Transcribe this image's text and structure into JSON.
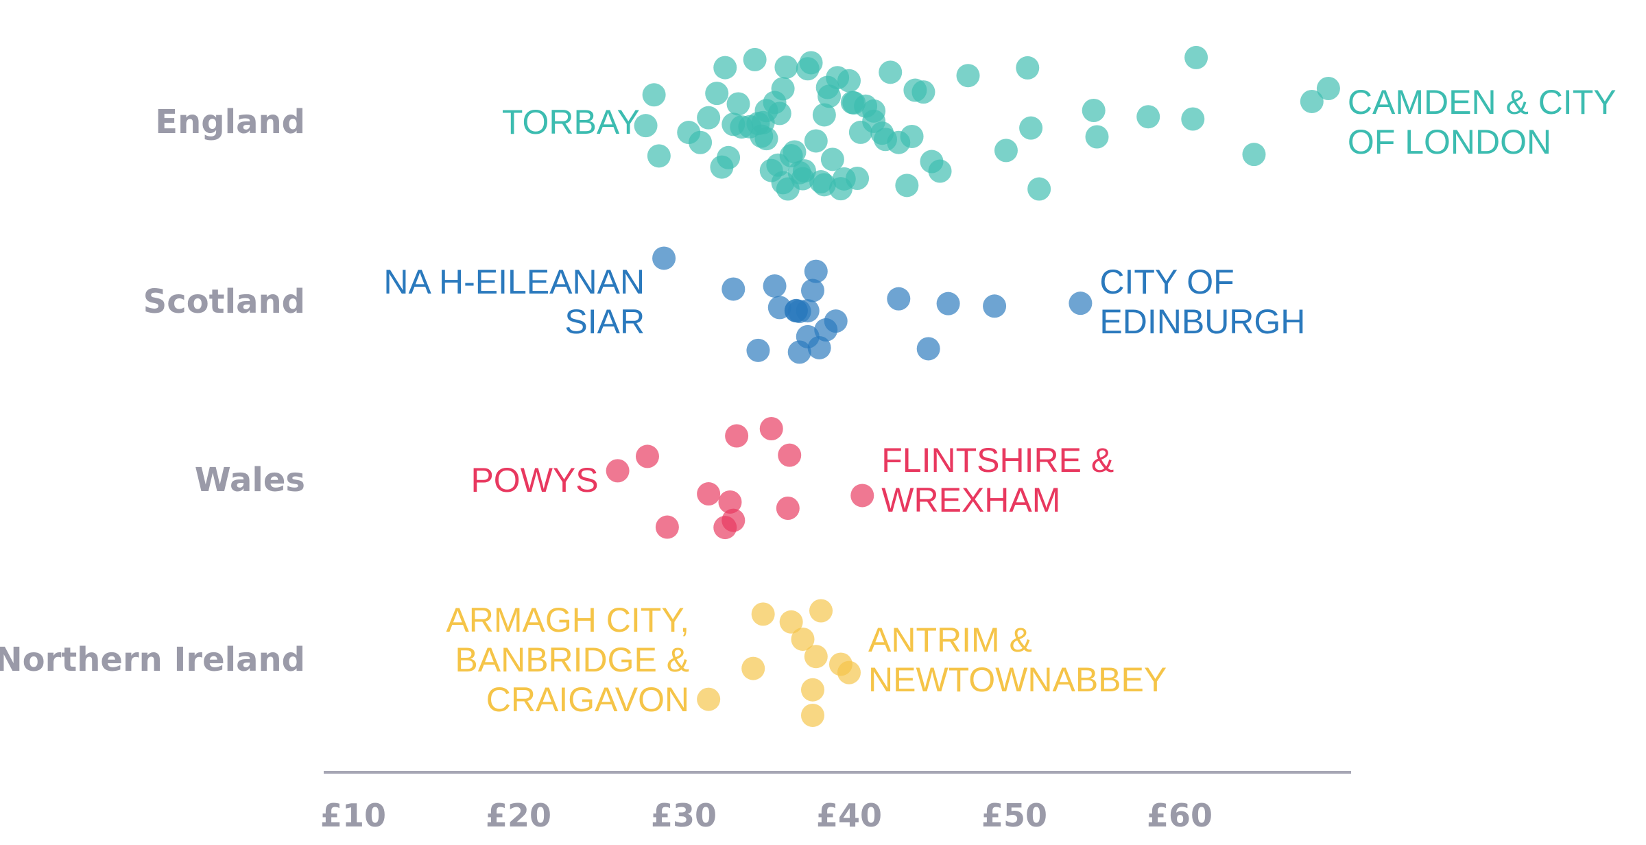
{
  "chart_data": {
    "type": "scatter",
    "title": "",
    "xlabel": "",
    "ylabel": "",
    "x_range": [
      10,
      70
    ],
    "x_ticks": [
      {
        "value": 10,
        "label": "£10"
      },
      {
        "value": 20,
        "label": "£20"
      },
      {
        "value": 30,
        "label": "£30"
      },
      {
        "value": 40,
        "label": "£40"
      },
      {
        "value": 50,
        "label": "£50"
      },
      {
        "value": 60,
        "label": "£60"
      }
    ],
    "grid": false,
    "categories": [
      "England",
      "Scotland",
      "Wales",
      "Northern Ireland"
    ],
    "series": [
      {
        "name": "England",
        "color": "#3cbcb0",
        "values": [
          28.5,
          30.3,
          31.5,
          32.0,
          32.3,
          32.7,
          33.0,
          33.5,
          34.0,
          34.3,
          34.7,
          35.0,
          35.0,
          35.3,
          35.5,
          35.8,
          36.0,
          36.3,
          36.7,
          37.0,
          37.3,
          37.7,
          38.0,
          38.3,
          38.7,
          39.0,
          39.3,
          39.7,
          40.0,
          40.3,
          40.7,
          41.0,
          41.5,
          42.0,
          42.5,
          43.0,
          43.5,
          44.0,
          44.5,
          45.0,
          45.5,
          31.0,
          32.5,
          34.5,
          35.7,
          36.5,
          37.5,
          38.5,
          39.5,
          40.5,
          41.5,
          33.3,
          34.8,
          36.2,
          37.2,
          38.8,
          40.2,
          42.2,
          43.8,
          27.7,
          28.2,
          36.0,
          38.5,
          47.2,
          49.5,
          50.8,
          51.5,
          51.0,
          54.8,
          55.0,
          58.1,
          60.8,
          61.0,
          64.5,
          68.0,
          69.0
        ],
        "labels": [
          {
            "text": [
              "TORBAY"
            ],
            "value": 28.5
          },
          {
            "text": [
              "CAMDEN & CITY",
              "OF LONDON"
            ],
            "value": 69.0
          }
        ]
      },
      {
        "name": "Scotland",
        "color": "#2a79bd",
        "values": [
          28.8,
          33.0,
          35.5,
          34.5,
          35.8,
          36.8,
          36.8,
          37.0,
          37.5,
          37.8,
          38.2,
          37.5,
          38.0,
          38.6,
          39.2,
          37.0,
          43.0,
          44.8,
          46.0,
          48.8,
          54.0
        ],
        "labels": [
          {
            "text": [
              "NA H-EILEANAN",
              "SIAR"
            ],
            "value": 28.8
          },
          {
            "text": [
              "CITY OF",
              "EDINBURGH"
            ],
            "value": 54.0
          }
        ]
      },
      {
        "name": "Wales",
        "color": "#e8385f",
        "values": [
          26.0,
          27.8,
          29.0,
          31.5,
          32.5,
          32.8,
          33.2,
          33.0,
          35.3,
          36.4,
          36.3,
          40.8
        ],
        "labels": [
          {
            "text": [
              "POWYS"
            ],
            "value": 26.0
          },
          {
            "text": [
              "FLINTSHIRE &",
              "WREXHAM"
            ],
            "value": 40.8
          }
        ]
      },
      {
        "name": "Northern Ireland",
        "color": "#f5c448",
        "values": [
          31.5,
          34.2,
          34.8,
          36.5,
          37.2,
          37.8,
          38.0,
          38.3,
          39.5,
          40.0,
          37.8
        ],
        "labels": [
          {
            "text": [
              "ARMAGH CITY,",
              "BANBRIDGE &",
              "CRAIGAVON"
            ],
            "value": 31.5
          },
          {
            "text": [
              "ANTRIM &",
              "NEWTOWNABBEY"
            ],
            "value": 40.0
          }
        ]
      }
    ]
  }
}
